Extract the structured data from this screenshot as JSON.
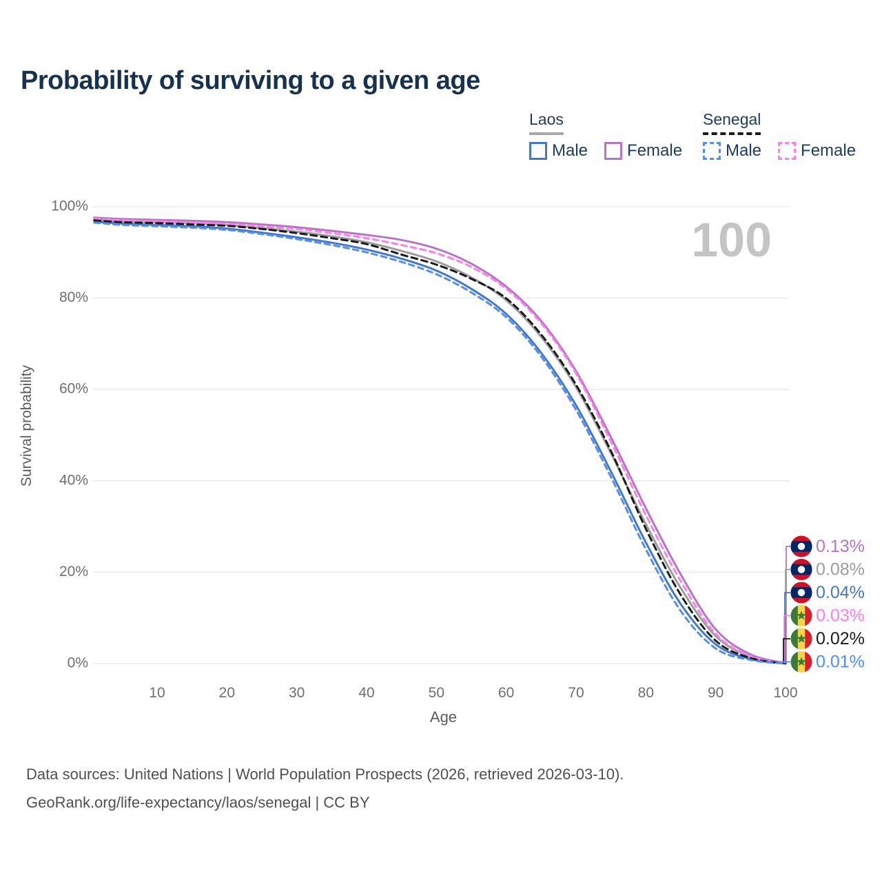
{
  "title": "Probability of surviving to a given age",
  "watermark": "100",
  "legend": {
    "groups": [
      {
        "label": "Laos",
        "line_style": "solid",
        "underline_color": "#a8a8a8",
        "items": [
          {
            "label": "Male",
            "color": "#4677c2"
          },
          {
            "label": "Female",
            "color": "#b377c2"
          }
        ]
      },
      {
        "label": "Senegal",
        "line_style": "dashed",
        "underline_color": "#1a1a1a",
        "items": [
          {
            "label": "Male",
            "color": "#4f8df7"
          },
          {
            "label": "Female",
            "color": "#ff7cf0"
          }
        ]
      }
    ]
  },
  "chart_data": {
    "type": "line",
    "title": "Probability of surviving to a given age",
    "xlabel": "Age",
    "ylabel": "Survival probability",
    "xlim": [
      0,
      100
    ],
    "ylim": [
      0,
      100
    ],
    "x_ticks": [
      10,
      20,
      30,
      40,
      50,
      60,
      70,
      80,
      90,
      100
    ],
    "y_ticks": [
      0,
      20,
      40,
      60,
      80,
      100
    ],
    "y_tick_suffix": "%",
    "grid": "horizontal",
    "legend_position": "top-right",
    "watermark": "100",
    "ages": [
      1,
      5,
      10,
      15,
      20,
      25,
      30,
      35,
      40,
      45,
      50,
      55,
      60,
      65,
      70,
      75,
      80,
      85,
      90,
      95,
      100
    ],
    "series": [
      {
        "name": "Laos Female",
        "country": "Laos",
        "sex": "Female",
        "dash": "solid",
        "color": "#b377c2",
        "end_label": "0.13%",
        "flag": "laos",
        "values": [
          97.6,
          97.3,
          97.1,
          96.9,
          96.6,
          96.1,
          95.5,
          94.7,
          93.8,
          92.7,
          90.8,
          87.5,
          82.5,
          75.0,
          64.0,
          49.5,
          34.0,
          19.5,
          7.5,
          2.0,
          0.13
        ]
      },
      {
        "name": "Laos Both sexes",
        "country": "Laos",
        "sex": "Both",
        "dash": "solid",
        "color": "#9c9c9c",
        "end_label": "0.08%",
        "flag": "laos",
        "values": [
          97.1,
          96.8,
          96.6,
          96.4,
          96.0,
          95.3,
          94.5,
          93.5,
          92.2,
          90.3,
          88.0,
          84.5,
          79.5,
          71.5,
          60.5,
          46.0,
          30.5,
          16.5,
          6.0,
          1.5,
          0.08
        ]
      },
      {
        "name": "Laos Male",
        "country": "Laos",
        "sex": "Male",
        "dash": "solid",
        "color": "#4677c2",
        "end_label": "0.04%",
        "flag": "laos",
        "values": [
          96.7,
          96.3,
          96.0,
          95.7,
          95.2,
          94.3,
          93.3,
          92.1,
          90.6,
          88.6,
          86.0,
          82.0,
          76.5,
          68.0,
          56.5,
          42.0,
          26.5,
          13.0,
          4.2,
          1.0,
          0.04
        ]
      },
      {
        "name": "Senegal Female",
        "country": "Senegal",
        "sex": "Female",
        "dash": "dashed",
        "color": "#ff7cf0",
        "end_label": "0.03%",
        "flag": "senegal",
        "values": [
          97.4,
          97.0,
          96.8,
          96.5,
          96.2,
          95.7,
          95.1,
          94.2,
          93.1,
          91.6,
          89.8,
          86.8,
          82.0,
          74.5,
          63.5,
          48.5,
          32.5,
          18.0,
          6.5,
          1.6,
          0.03
        ]
      },
      {
        "name": "Senegal Both sexes",
        "country": "Senegal",
        "sex": "Both",
        "dash": "dashed",
        "color": "#1a1a1a",
        "end_label": "0.02%",
        "flag": "senegal",
        "values": [
          97.0,
          96.6,
          96.4,
          96.1,
          95.8,
          95.1,
          94.2,
          93.1,
          91.8,
          89.5,
          87.3,
          84.2,
          79.9,
          72.0,
          61.0,
          46.5,
          29.5,
          15.0,
          5.0,
          1.2,
          0.02
        ]
      },
      {
        "name": "Senegal Male",
        "country": "Senegal",
        "sex": "Male",
        "dash": "dashed",
        "color": "#4f8df7",
        "end_label": "0.01%",
        "flag": "senegal",
        "values": [
          96.5,
          96.0,
          95.7,
          95.4,
          94.9,
          94.0,
          92.9,
          91.6,
          90.0,
          87.9,
          85.2,
          81.2,
          75.8,
          67.2,
          55.5,
          40.8,
          25.0,
          11.5,
          3.3,
          0.8,
          0.01
        ]
      }
    ],
    "flag_colors": {
      "laos": {
        "red": "#ce1126",
        "blue": "#002868",
        "white": "#f4f5f8"
      },
      "senegal": {
        "green": "#3d7a33",
        "yellow": "#f6d44a",
        "red": "#d5212e",
        "star": "#3d7a33"
      }
    }
  },
  "footer": {
    "line1": "Data sources: United Nations | World Population Prospects (2026, retrieved 2026-03-10).",
    "line2": "GeoRank.org/life-expectancy/laos/senegal | CC BY"
  }
}
